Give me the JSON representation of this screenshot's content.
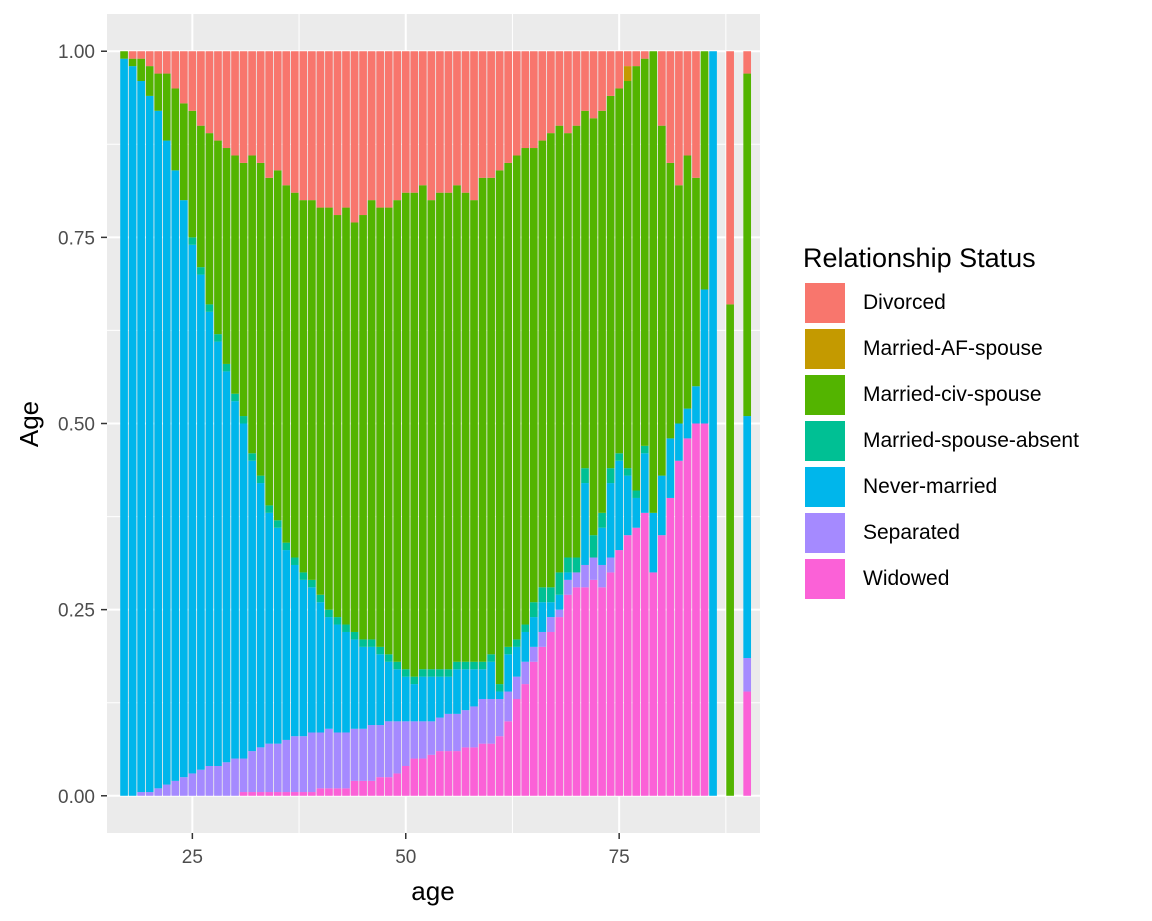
{
  "chart_data": {
    "type": "bar",
    "stacked": true,
    "position": "fill",
    "xlabel": "age",
    "ylabel": "Age",
    "xlim": [
      15,
      91.5
    ],
    "ylim": [
      -0.05,
      1.05
    ],
    "x_ticks": [
      25,
      50,
      75
    ],
    "x_tick_labels": [
      "25",
      "50",
      "75"
    ],
    "y_ticks": [
      0,
      0.25,
      0.5,
      0.75,
      1
    ],
    "y_tick_labels": [
      "0.00",
      "0.25",
      "0.50",
      "0.75",
      "1.00"
    ],
    "grid": true,
    "legend": {
      "title": "Relationship Status",
      "position": "right",
      "entries": [
        "Divorced",
        "Married-AF-spouse",
        "Married-civ-spouse",
        "Married-spouse-absent",
        "Never-married",
        "Separated",
        "Widowed"
      ]
    },
    "series": [
      {
        "name": "Divorced",
        "color": "#F8766D"
      },
      {
        "name": "Married-AF-spouse",
        "color": "#C49A00"
      },
      {
        "name": "Married-civ-spouse",
        "color": "#53B400"
      },
      {
        "name": "Married-spouse-absent",
        "color": "#00C094"
      },
      {
        "name": "Never-married",
        "color": "#00B6EB"
      },
      {
        "name": "Separated",
        "color": "#A58AFF"
      },
      {
        "name": "Widowed",
        "color": "#FB61D7"
      }
    ],
    "stack_order_bottom_to_top": [
      "Widowed",
      "Separated",
      "Never-married",
      "Married-spouse-absent",
      "Married-civ-spouse",
      "Married-AF-spouse",
      "Divorced"
    ],
    "x": [
      17,
      18,
      19,
      20,
      21,
      22,
      23,
      24,
      25,
      26,
      27,
      28,
      29,
      30,
      31,
      32,
      33,
      34,
      35,
      36,
      37,
      38,
      39,
      40,
      41,
      42,
      43,
      44,
      45,
      46,
      47,
      48,
      49,
      50,
      51,
      52,
      53,
      54,
      55,
      56,
      57,
      58,
      59,
      60,
      61,
      62,
      63,
      64,
      65,
      66,
      67,
      68,
      69,
      70,
      71,
      72,
      73,
      74,
      75,
      76,
      77,
      78,
      79,
      80,
      81,
      82,
      83,
      84,
      85,
      86,
      88,
      90
    ],
    "bounds_note": "cumulative upper bounds from bottom: widowed, +separated, +never-married, +spouse-absent, +civ-spouse, +af-spouse (top of divorced = 1)",
    "widowed_top": [
      0,
      0,
      0,
      0,
      0,
      0,
      0,
      0,
      0,
      0,
      0,
      0,
      0,
      0,
      0.005,
      0.005,
      0.005,
      0.005,
      0.005,
      0.005,
      0.005,
      0.005,
      0.005,
      0.01,
      0.01,
      0.01,
      0.01,
      0.02,
      0.02,
      0.02,
      0.025,
      0.025,
      0.03,
      0.04,
      0.05,
      0.05,
      0.055,
      0.06,
      0.06,
      0.06,
      0.065,
      0.065,
      0.07,
      0.07,
      0.08,
      0.1,
      0.13,
      0.15,
      0.18,
      0.2,
      0.22,
      0.24,
      0.27,
      0.28,
      0.28,
      0.29,
      0.28,
      0.3,
      0.33,
      0.35,
      0.36,
      0.38,
      0.3,
      0.35,
      0.4,
      0.45,
      0.48,
      0.5,
      0.5,
      0,
      0,
      0.14
    ],
    "separated_top": [
      0,
      0,
      0.005,
      0.005,
      0.01,
      0.015,
      0.02,
      0.025,
      0.03,
      0.035,
      0.04,
      0.04,
      0.045,
      0.05,
      0.05,
      0.06,
      0.065,
      0.07,
      0.07,
      0.075,
      0.08,
      0.08,
      0.085,
      0.085,
      0.09,
      0.085,
      0.085,
      0.09,
      0.09,
      0.095,
      0.095,
      0.1,
      0.1,
      0.1,
      0.1,
      0.1,
      0.1,
      0.105,
      0.11,
      0.11,
      0.115,
      0.12,
      0.13,
      0.13,
      0.13,
      0.14,
      0.16,
      0.18,
      0.2,
      0.22,
      0.24,
      0.25,
      0.29,
      0.3,
      0.31,
      0.32,
      0.31,
      0.32,
      0.33,
      0.35,
      0.36,
      0.38,
      0.3,
      0.35,
      0.4,
      0.45,
      0.48,
      0.5,
      0.5,
      0,
      0,
      0.185
    ],
    "never_married_top": [
      0.99,
      0.98,
      0.96,
      0.94,
      0.92,
      0.88,
      0.84,
      0.8,
      0.74,
      0.7,
      0.65,
      0.61,
      0.57,
      0.53,
      0.5,
      0.45,
      0.42,
      0.38,
      0.36,
      0.33,
      0.31,
      0.29,
      0.28,
      0.26,
      0.24,
      0.23,
      0.22,
      0.21,
      0.2,
      0.2,
      0.19,
      0.18,
      0.17,
      0.16,
      0.15,
      0.16,
      0.16,
      0.16,
      0.16,
      0.17,
      0.17,
      0.17,
      0.17,
      0.18,
      0.14,
      0.19,
      0.2,
      0.22,
      0.24,
      0.26,
      0.26,
      0.27,
      0.3,
      0.3,
      0.42,
      0.32,
      0.36,
      0.42,
      0.45,
      0.43,
      0.4,
      0.46,
      0.38,
      0.43,
      0.48,
      0.5,
      0.52,
      0.55,
      0.68,
      1,
      0,
      0.51
    ],
    "spouse_absent_top": [
      0.99,
      0.98,
      0.96,
      0.94,
      0.92,
      0.88,
      0.84,
      0.8,
      0.75,
      0.71,
      0.66,
      0.62,
      0.58,
      0.54,
      0.51,
      0.46,
      0.43,
      0.39,
      0.37,
      0.34,
      0.32,
      0.3,
      0.29,
      0.27,
      0.25,
      0.24,
      0.23,
      0.22,
      0.21,
      0.21,
      0.2,
      0.19,
      0.18,
      0.17,
      0.16,
      0.17,
      0.17,
      0.17,
      0.17,
      0.18,
      0.18,
      0.18,
      0.18,
      0.19,
      0.15,
      0.2,
      0.21,
      0.23,
      0.26,
      0.28,
      0.28,
      0.3,
      0.32,
      0.32,
      0.44,
      0.35,
      0.38,
      0.44,
      0.46,
      0.44,
      0.41,
      0.47,
      0.38,
      0.43,
      0.48,
      0.5,
      0.52,
      0.55,
      0.68,
      1,
      0,
      0.51
    ],
    "civ_spouse_top": [
      1,
      0.99,
      0.99,
      0.98,
      0.97,
      0.97,
      0.95,
      0.93,
      0.92,
      0.9,
      0.89,
      0.88,
      0.87,
      0.86,
      0.85,
      0.86,
      0.85,
      0.83,
      0.84,
      0.82,
      0.81,
      0.8,
      0.8,
      0.79,
      0.79,
      0.78,
      0.79,
      0.77,
      0.78,
      0.8,
      0.79,
      0.79,
      0.8,
      0.81,
      0.81,
      0.82,
      0.8,
      0.81,
      0.81,
      0.82,
      0.81,
      0.8,
      0.83,
      0.83,
      0.84,
      0.85,
      0.86,
      0.87,
      0.87,
      0.88,
      0.89,
      0.9,
      0.89,
      0.9,
      0.92,
      0.91,
      0.92,
      0.94,
      0.95,
      0.96,
      0.98,
      0.99,
      1,
      0.9,
      0.85,
      0.82,
      0.86,
      0.83,
      1,
      1,
      0.66,
      0.97
    ],
    "af_spouse_top": [
      1,
      0.99,
      0.99,
      0.98,
      0.97,
      0.97,
      0.95,
      0.93,
      0.92,
      0.9,
      0.89,
      0.88,
      0.87,
      0.86,
      0.85,
      0.86,
      0.85,
      0.83,
      0.84,
      0.82,
      0.81,
      0.8,
      0.8,
      0.79,
      0.79,
      0.78,
      0.79,
      0.77,
      0.78,
      0.8,
      0.79,
      0.79,
      0.8,
      0.81,
      0.81,
      0.82,
      0.8,
      0.81,
      0.81,
      0.82,
      0.81,
      0.8,
      0.83,
      0.83,
      0.84,
      0.85,
      0.86,
      0.87,
      0.87,
      0.88,
      0.89,
      0.9,
      0.89,
      0.9,
      0.92,
      0.91,
      0.92,
      0.94,
      0.95,
      0.98,
      0.98,
      0.99,
      1,
      0.9,
      0.85,
      0.82,
      0.86,
      0.83,
      1,
      1,
      0.66,
      0.97
    ]
  }
}
